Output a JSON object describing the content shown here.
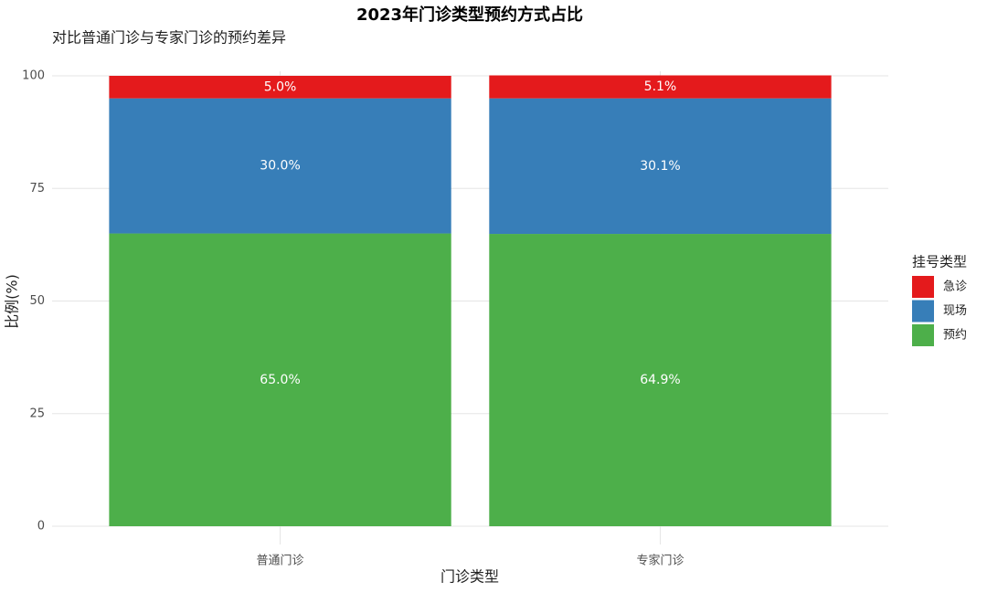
{
  "chart_data": {
    "type": "stacked_bar",
    "title": "2023年门诊类型预约方式占比",
    "subtitle": "对比普通门诊与专家门诊的预约差异",
    "x_label": "门诊类型",
    "y_label": "比例(%)",
    "legend_title": "挂号类型",
    "categories": [
      "普通门诊",
      "专家门诊"
    ],
    "series": [
      {
        "name": "预约",
        "color": "#4daf4a",
        "values": [
          65.0,
          64.9
        ],
        "value_labels": [
          "65.0%",
          "64.9%"
        ]
      },
      {
        "name": "现场",
        "color": "#377eb8",
        "values": [
          30.0,
          30.1
        ],
        "value_labels": [
          "30.0%",
          "30.1%"
        ]
      },
      {
        "name": "急诊",
        "color": "#e41a1c",
        "values": [
          5.0,
          5.1
        ],
        "value_labels": [
          "5.0%",
          "5.1%"
        ]
      }
    ],
    "ylim": [
      0,
      100
    ],
    "yticks": [
      0,
      25,
      50,
      75,
      100
    ],
    "grid": true,
    "legend": "right"
  }
}
